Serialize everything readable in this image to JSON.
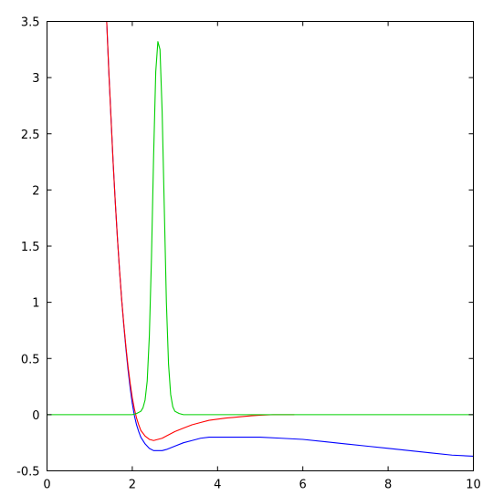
{
  "chart_data": {
    "type": "line",
    "title": "",
    "xlabel": "",
    "ylabel": "",
    "xlim": [
      0,
      10
    ],
    "ylim": [
      -0.5,
      3.5
    ],
    "grid": false,
    "x_ticks": [
      "0",
      "2",
      "4",
      "6",
      "8",
      "10"
    ],
    "y_ticks": [
      "-0.5",
      "0",
      "0.5",
      "1",
      "1.5",
      "2",
      "2.5",
      "3",
      "3.5"
    ],
    "series": [
      {
        "color": "#0000ff",
        "x": [
          1.4,
          1.45,
          1.5,
          1.55,
          1.6,
          1.65,
          1.7,
          1.75,
          1.8,
          1.85,
          1.9,
          1.95,
          2.0,
          2.05,
          2.1,
          2.15,
          2.2,
          2.3,
          2.4,
          2.5,
          2.6,
          2.7,
          2.8,
          3.0,
          3.2,
          3.4,
          3.6,
          3.8,
          4.0,
          4.2,
          4.5,
          5.0,
          5.5,
          6.0,
          6.5,
          7.0,
          7.5,
          8.0,
          8.5,
          9.0,
          9.5,
          10.0
        ],
        "y": [
          3.5,
          3.05,
          2.65,
          2.25,
          1.9,
          1.58,
          1.29,
          1.03,
          0.8,
          0.59,
          0.4,
          0.24,
          0.1,
          -0.01,
          -0.09,
          -0.15,
          -0.2,
          -0.26,
          -0.3,
          -0.32,
          -0.32,
          -0.32,
          -0.31,
          -0.28,
          -0.25,
          -0.23,
          -0.21,
          -0.2,
          -0.2,
          -0.2,
          -0.2,
          -0.2,
          -0.21,
          -0.22,
          -0.24,
          -0.26,
          -0.28,
          -0.3,
          -0.32,
          -0.34,
          -0.36,
          -0.37
        ]
      },
      {
        "color": "#ff0000",
        "x": [
          1.4,
          1.45,
          1.5,
          1.55,
          1.6,
          1.65,
          1.7,
          1.75,
          1.8,
          1.85,
          1.9,
          1.95,
          2.0,
          2.05,
          2.1,
          2.15,
          2.2,
          2.3,
          2.4,
          2.5,
          2.6,
          2.7,
          2.8,
          3.0,
          3.2,
          3.4,
          3.6,
          3.8,
          4.0,
          4.2,
          4.5,
          4.8,
          5.0,
          5.3,
          5.6,
          5.8
        ],
        "y": [
          3.5,
          3.05,
          2.65,
          2.25,
          1.9,
          1.58,
          1.29,
          1.03,
          0.81,
          0.61,
          0.43,
          0.28,
          0.15,
          0.05,
          -0.03,
          -0.09,
          -0.14,
          -0.19,
          -0.22,
          -0.23,
          -0.22,
          -0.21,
          -0.19,
          -0.15,
          -0.12,
          -0.09,
          -0.07,
          -0.05,
          -0.04,
          -0.03,
          -0.02,
          -0.01,
          -0.005,
          0.0,
          0.0,
          0.0
        ]
      },
      {
        "color": "#00d000",
        "x": [
          0.0,
          1.8,
          2.0,
          2.1,
          2.2,
          2.25,
          2.3,
          2.35,
          2.4,
          2.45,
          2.5,
          2.55,
          2.6,
          2.65,
          2.7,
          2.75,
          2.8,
          2.85,
          2.9,
          2.95,
          3.0,
          3.1,
          3.2,
          3.4,
          10.0
        ],
        "y": [
          0.0,
          0.0,
          0.0,
          0.01,
          0.03,
          0.06,
          0.13,
          0.3,
          0.7,
          1.4,
          2.3,
          3.05,
          3.32,
          3.25,
          2.7,
          1.85,
          1.0,
          0.45,
          0.18,
          0.07,
          0.03,
          0.01,
          0.0,
          0.0,
          0.0
        ]
      }
    ]
  }
}
